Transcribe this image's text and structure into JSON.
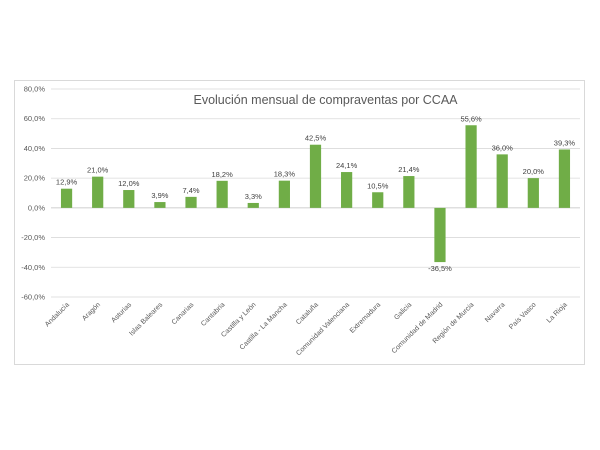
{
  "chart_data": {
    "type": "bar",
    "title": "Evolución mensual de compraventas por CCAA",
    "xlabel": "",
    "ylabel": "",
    "ylim": [
      -60,
      80
    ],
    "yticks": [
      80,
      60,
      40,
      20,
      0,
      -20,
      -40,
      -60
    ],
    "ytick_labels": [
      "80,0%",
      "60,0%",
      "40,0%",
      "20,0%",
      "0,0%",
      "-20,0%",
      "-40,0%",
      "-60,0%"
    ],
    "grid": true,
    "legend": "none",
    "bar_color": "#70ad47",
    "categories": [
      "Andalucía",
      "Aragón",
      "Asturias",
      "Islas Baleares",
      "Canarias",
      "Cantabria",
      "Castilla y León",
      "Castilla - La Mancha",
      "Cataluña",
      "Comunidad Valenciana",
      "Extremadura",
      "Galicia",
      "Comunidad de Madrid",
      "Región de Murcia",
      "Navarra",
      "País Vasco",
      "La Rioja"
    ],
    "values": [
      12.9,
      21.0,
      12.0,
      3.9,
      7.4,
      18.2,
      3.3,
      18.3,
      42.5,
      24.1,
      10.5,
      21.4,
      -36.5,
      55.6,
      36.0,
      20.0,
      39.3
    ],
    "data_labels": [
      "12,9%",
      "21,0%",
      "12,0%",
      "3,9%",
      "7,4%",
      "18,2%",
      "3,3%",
      "18,3%",
      "42,5%",
      "24,1%",
      "10,5%",
      "21,4%",
      "-36,5%",
      "55,6%",
      "36,0%",
      "20,0%",
      "39,3%"
    ]
  }
}
